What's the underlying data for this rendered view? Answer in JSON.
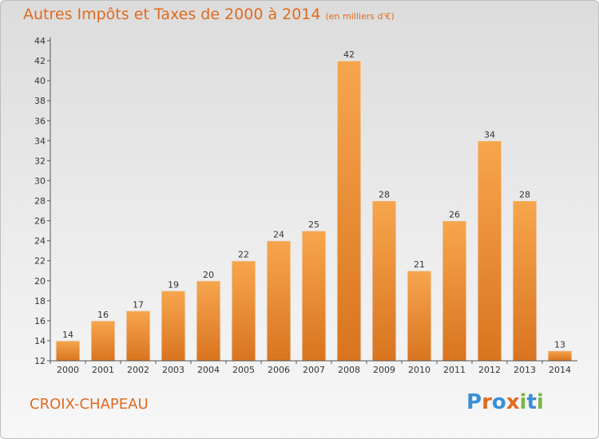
{
  "header": {
    "title": "Autres Impôts et Taxes de 2000 à 2014",
    "subtitle": "(en milliers d'€)"
  },
  "footer": {
    "place": "CROIX-CHAPEAU",
    "logo_text": "Proxiti"
  },
  "colors": {
    "title": "#e06a1f",
    "bar_top": "#f7a64e",
    "bar_bottom": "#d9741f",
    "logo_p": "#3a8fd6",
    "logo_r": "#e06a1f",
    "logo_o": "#3a8fd6",
    "logo_x": "#e06a1f",
    "logo_i": "#7ab648",
    "logo_t": "#3a8fd6"
  },
  "chart_data": {
    "type": "bar",
    "title": "Autres Impôts et Taxes de 2000 à 2014",
    "subtitle": "(en milliers d'€)",
    "categories": [
      "2000",
      "2001",
      "2002",
      "2003",
      "2004",
      "2005",
      "2006",
      "2007",
      "2008",
      "2009",
      "2010",
      "2011",
      "2012",
      "2013",
      "2014"
    ],
    "values": [
      14,
      16,
      17,
      19,
      20,
      22,
      24,
      25,
      42,
      28,
      21,
      26,
      34,
      28,
      13
    ],
    "ylim": [
      12,
      44
    ],
    "yticks": [
      12,
      14,
      16,
      18,
      20,
      22,
      24,
      26,
      28,
      30,
      32,
      34,
      36,
      38,
      40,
      42,
      44
    ],
    "grid": false,
    "legend": "none"
  }
}
